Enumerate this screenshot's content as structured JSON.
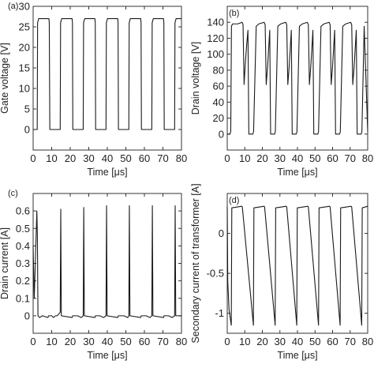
{
  "chart_data": [
    {
      "type": "line",
      "panel_label": "(a)",
      "xlabel": "Time [μs]",
      "ylabel": "Gate voltage [V]",
      "xlim": [
        0,
        80
      ],
      "ylim": [
        -5,
        30
      ],
      "xticks": [
        "0",
        "10",
        "20",
        "30",
        "40",
        "50",
        "60",
        "70",
        "80"
      ],
      "yticks": [
        "0",
        "5",
        "10",
        "15",
        "20",
        "25",
        "30"
      ],
      "series": [
        {
          "x": [
            0,
            2.2,
            2.4,
            3.0,
            8.5,
            8.7,
            9.0,
            14.6,
            14.8,
            15.4,
            21.0,
            21.2,
            21.4,
            27.0,
            27.2,
            27.8,
            33.3,
            33.5,
            33.7,
            39.3,
            39.5,
            40.1,
            45.6,
            45.8,
            46.0,
            51.6,
            51.8,
            52.4,
            58.0,
            58.2,
            58.4,
            64.0,
            64.2,
            64.8,
            70.3,
            70.5,
            70.7,
            76.3,
            76.5,
            77.1,
            80
          ],
          "y": [
            0,
            0,
            26,
            27,
            27,
            26,
            0,
            0,
            26,
            27,
            27,
            26,
            0,
            0,
            26,
            27,
            27,
            26,
            0,
            0,
            26,
            27,
            27,
            26,
            0,
            0,
            26,
            27,
            27,
            26,
            0,
            0,
            26,
            27,
            27,
            26,
            0,
            0,
            26,
            27,
            27
          ]
        }
      ]
    },
    {
      "type": "line",
      "panel_label": "(b)",
      "xlabel": "Time [μs]",
      "ylabel": "Drain voltage [V]",
      "xlim": [
        0,
        80
      ],
      "ylim": [
        -20,
        160
      ],
      "xticks": [
        "0",
        "10",
        "20",
        "30",
        "40",
        "50",
        "60",
        "70",
        "80"
      ],
      "yticks": [
        "0",
        "20",
        "40",
        "60",
        "80",
        "100",
        "120",
        "140"
      ],
      "series": [
        {
          "x": [
            0,
            1.5,
            2.0,
            2.4,
            3.0,
            6.0,
            8.5,
            9.0,
            9.6,
            10.2,
            11.0,
            11.8,
            12.3,
            13.0,
            14.6,
            15.0,
            16.5,
            18.0,
            21.0,
            21.6,
            22.2,
            23.0,
            24.2,
            24.7,
            25.4,
            27.0,
            27.4,
            28.8,
            30.5,
            33.3,
            33.9,
            34.5,
            35.3,
            36.5,
            37.0,
            37.7,
            39.3,
            39.7,
            41.1,
            42.8,
            45.6,
            46.2,
            46.8,
            47.6,
            48.8,
            49.3,
            50.0,
            51.6,
            52.0,
            53.4,
            55.1,
            58.0,
            58.6,
            59.2,
            60.0,
            61.2,
            61.7,
            62.4,
            64.0,
            64.4,
            65.8,
            67.5,
            70.3,
            70.9,
            71.5,
            72.3,
            73.5,
            74.0,
            74.7,
            76.3,
            76.7,
            78.0,
            80
          ],
          "y": [
            0,
            0,
            3,
            135,
            138,
            138,
            140,
            137,
            62,
            85,
            110,
            130,
            0,
            0,
            0,
            3,
            135,
            138,
            140,
            137,
            62,
            85,
            130,
            0,
            0,
            0,
            3,
            135,
            138,
            140,
            137,
            62,
            85,
            130,
            0,
            0,
            0,
            3,
            135,
            138,
            140,
            137,
            62,
            85,
            130,
            0,
            0,
            0,
            3,
            135,
            138,
            140,
            137,
            62,
            85,
            130,
            0,
            0,
            0,
            3,
            135,
            138,
            140,
            137,
            62,
            85,
            130,
            0,
            0,
            0,
            3,
            135,
            3
          ]
        }
      ]
    },
    {
      "type": "line",
      "panel_label": "(c)",
      "xlabel": "Time [μs]",
      "ylabel": "Drain current [A]",
      "xlim": [
        0,
        80
      ],
      "ylim": [
        -0.1,
        0.7
      ],
      "xticks": [
        "0",
        "10",
        "20",
        "30",
        "40",
        "50",
        "60",
        "70",
        "80"
      ],
      "yticks": [
        "0",
        "0.1",
        "0.2",
        "0.3",
        "0.4",
        "0.5",
        "0.6"
      ],
      "series": [
        {
          "x": [
            0,
            0.6,
            2.0,
            2.3,
            2.6,
            3.5,
            5.0,
            8.0,
            8.3,
            8.6,
            9.2,
            10.0,
            11.0,
            12.0,
            13.0,
            14.6,
            14.9,
            15.2,
            21.0,
            21.3,
            21.5,
            22.5,
            24.0,
            26.0,
            27.0,
            27.3,
            27.6,
            33.3,
            33.6,
            33.9,
            34.5,
            36.0,
            38.0,
            39.3,
            39.6,
            39.9,
            45.6,
            45.9,
            46.2,
            47.0,
            49.0,
            51.0,
            51.6,
            51.9,
            52.2,
            58.0,
            58.3,
            58.5,
            59.5,
            61.0,
            63.0,
            64.0,
            64.3,
            64.6,
            70.3,
            70.6,
            70.9,
            71.5,
            73.0,
            75.0,
            76.3,
            76.6,
            76.9,
            80
          ],
          "y": [
            0.4,
            0.1,
            0.6,
            0.45,
            0.0,
            -0.01,
            0.0,
            -0.01,
            0.0,
            0.0,
            0.0,
            0.0,
            -0.01,
            0.0,
            0.0,
            0.02,
            0.61,
            0.0,
            -0.01,
            0.0,
            0.0,
            0.0,
            0.0,
            -0.01,
            0.0,
            0.62,
            0.0,
            -0.01,
            0.0,
            0.0,
            0.0,
            0.0,
            -0.01,
            0.0,
            0.63,
            0.0,
            -0.01,
            0.0,
            0.0,
            0.0,
            0.0,
            -0.01,
            0.0,
            0.63,
            0.0,
            -0.01,
            0.0,
            0.0,
            0.0,
            0.0,
            -0.01,
            0.0,
            0.63,
            0.0,
            -0.01,
            0.0,
            0.0,
            0.0,
            0.0,
            -0.01,
            0.0,
            0.63,
            0.0,
            0.0
          ]
        }
      ]
    },
    {
      "type": "line",
      "panel_label": "(d)",
      "xlabel": "Time [μs]",
      "ylabel": "Secondary current of transformer [A]",
      "xlim": [
        0,
        80
      ],
      "ylim": [
        -1.25,
        0.5
      ],
      "xticks": [
        "0",
        "10",
        "20",
        "30",
        "40",
        "50",
        "60",
        "70",
        "80"
      ],
      "yticks": [
        "-1",
        "-0.5",
        "0"
      ],
      "series": [
        {
          "x": [
            0,
            0.3,
            1.0,
            2.3,
            2.6,
            8.3,
            8.6,
            14.9,
            15.2,
            21.0,
            21.3,
            27.3,
            27.6,
            33.6,
            33.9,
            39.6,
            39.9,
            45.9,
            46.2,
            52.0,
            52.3,
            58.3,
            58.6,
            64.3,
            64.6,
            70.6,
            70.9,
            76.6,
            76.9,
            80
          ],
          "y": [
            0.33,
            -0.6,
            -0.95,
            -1.15,
            0.32,
            0.34,
            0.33,
            -1.15,
            0.32,
            0.34,
            0.33,
            -1.15,
            0.32,
            0.34,
            0.33,
            -1.15,
            0.32,
            0.34,
            0.33,
            -1.15,
            0.32,
            0.34,
            0.33,
            -1.15,
            0.32,
            0.34,
            0.33,
            -1.15,
            0.32,
            0.34
          ]
        }
      ]
    }
  ]
}
